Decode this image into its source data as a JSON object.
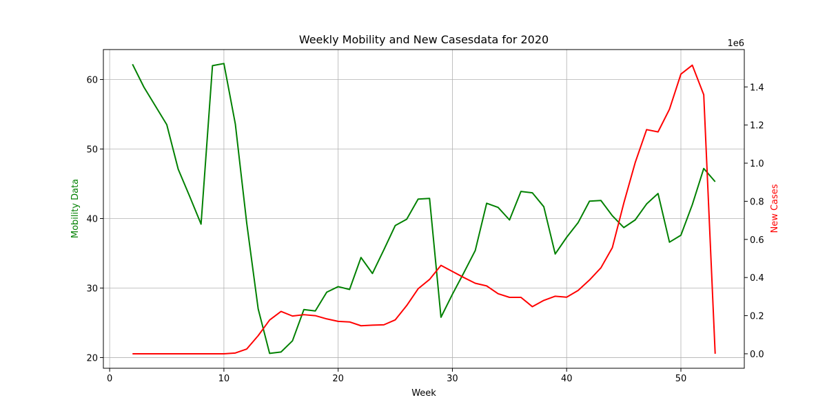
{
  "chart_data": {
    "type": "line",
    "title": "Weekly Mobility and New Casesdata for 2020",
    "xlabel": "Week",
    "ylabel_left": "Mobility Data",
    "ylabel_right": "New Cases",
    "right_axis_offset_label": "1e6",
    "xlim": [
      -0.55,
      55.55
    ],
    "ylim_left": [
      18.46,
      64.31
    ],
    "ylim_right": [
      -0.076,
      1.596
    ],
    "x_ticks": [
      0,
      10,
      20,
      30,
      40,
      50
    ],
    "y_left_ticks": [
      20,
      30,
      40,
      50,
      60
    ],
    "y_right_ticks": [
      "0.0",
      "0.2",
      "0.4",
      "0.6",
      "0.8",
      "1.0",
      "1.2",
      "1.4"
    ],
    "grid": true,
    "colors": {
      "mobility": "#008000",
      "cases": "#ff0000",
      "left_axis_label": "#008000",
      "right_axis_label": "#ff0000"
    },
    "x": [
      2,
      3,
      4,
      5,
      6,
      7,
      8,
      9,
      10,
      11,
      12,
      13,
      14,
      15,
      16,
      17,
      18,
      19,
      20,
      21,
      22,
      23,
      24,
      25,
      26,
      27,
      28,
      29,
      30,
      31,
      32,
      33,
      34,
      35,
      36,
      37,
      38,
      39,
      40,
      41,
      42,
      43,
      44,
      45,
      46,
      47,
      48,
      49,
      50,
      51,
      52,
      53
    ],
    "series": [
      {
        "axis": "left",
        "values": [
          62.2,
          58.9,
          56.2,
          53.5,
          47.1,
          43.2,
          39.2,
          62.0,
          62.3,
          53.6,
          39.3,
          27.0,
          20.6,
          20.8,
          22.4,
          26.9,
          26.7,
          29.4,
          30.2,
          29.8,
          34.4,
          32.1,
          35.5,
          39.0,
          39.9,
          42.8,
          42.9,
          25.8,
          29.1,
          32.2,
          35.4,
          42.2,
          41.6,
          39.8,
          43.9,
          43.7,
          41.7,
          34.9,
          37.3,
          39.4,
          42.5,
          42.6,
          40.4,
          38.7,
          39.8,
          42.1,
          43.6,
          36.6,
          37.6,
          42.0,
          47.2,
          45.3
        ]
      },
      {
        "axis": "right",
        "values": [
          0.0,
          0.0,
          0.0,
          0.0,
          0.0,
          0.0,
          0.0,
          0.0,
          0.0,
          0.004,
          0.025,
          0.095,
          0.177,
          0.222,
          0.198,
          0.205,
          0.2,
          0.183,
          0.17,
          0.167,
          0.147,
          0.15,
          0.152,
          0.178,
          0.253,
          0.341,
          0.39,
          0.464,
          0.432,
          0.4,
          0.37,
          0.356,
          0.315,
          0.296,
          0.296,
          0.247,
          0.28,
          0.302,
          0.297,
          0.332,
          0.387,
          0.451,
          0.557,
          0.79,
          1.003,
          1.176,
          1.164,
          1.283,
          1.467,
          1.514,
          1.359,
          0.0
        ]
      }
    ]
  }
}
